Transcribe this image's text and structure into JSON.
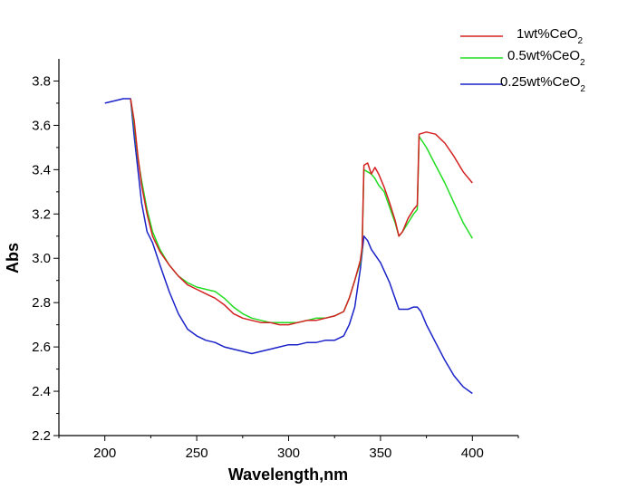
{
  "chart_data": {
    "type": "line",
    "title": "",
    "xlabel": "Wavelength,nm",
    "ylabel": "Abs",
    "xlim": [
      175,
      425
    ],
    "ylim": [
      2.2,
      3.9
    ],
    "x_ticks": [
      200,
      250,
      300,
      350,
      400
    ],
    "y_ticks": [
      2.2,
      2.4,
      2.6,
      2.8,
      3.0,
      3.2,
      3.4,
      3.6,
      3.8
    ],
    "y_tick_labels": [
      "2.2",
      "2.4",
      "2.6",
      "2.8",
      "3.0",
      "3.2",
      "3.4",
      "3.6",
      "3.8"
    ],
    "grid": false,
    "legend_position": "top-right",
    "series": [
      {
        "name": "1wt%CeO2",
        "label_main": "1wt%CeO",
        "label_sub": "2",
        "color": "#d42020",
        "points": [
          [
            214,
            3.72
          ],
          [
            216,
            3.62
          ],
          [
            218,
            3.46
          ],
          [
            220,
            3.33
          ],
          [
            223,
            3.2
          ],
          [
            226,
            3.1
          ],
          [
            230,
            3.03
          ],
          [
            235,
            2.97
          ],
          [
            240,
            2.92
          ],
          [
            245,
            2.88
          ],
          [
            250,
            2.86
          ],
          [
            255,
            2.84
          ],
          [
            260,
            2.82
          ],
          [
            265,
            2.79
          ],
          [
            270,
            2.75
          ],
          [
            275,
            2.73
          ],
          [
            280,
            2.72
          ],
          [
            285,
            2.71
          ],
          [
            290,
            2.71
          ],
          [
            295,
            2.7
          ],
          [
            300,
            2.7
          ],
          [
            305,
            2.71
          ],
          [
            310,
            2.72
          ],
          [
            315,
            2.72
          ],
          [
            320,
            2.73
          ],
          [
            325,
            2.74
          ],
          [
            330,
            2.76
          ],
          [
            333,
            2.82
          ],
          [
            336,
            2.9
          ],
          [
            339,
            2.99
          ],
          [
            340,
            3.05
          ],
          [
            341,
            3.42
          ],
          [
            343,
            3.43
          ],
          [
            345,
            3.38
          ],
          [
            347,
            3.41
          ],
          [
            349,
            3.38
          ],
          [
            352,
            3.32
          ],
          [
            355,
            3.25
          ],
          [
            358,
            3.17
          ],
          [
            360,
            3.1
          ],
          [
            362,
            3.12
          ],
          [
            365,
            3.18
          ],
          [
            368,
            3.22
          ],
          [
            370,
            3.24
          ],
          [
            371,
            3.56
          ],
          [
            375,
            3.57
          ],
          [
            380,
            3.56
          ],
          [
            385,
            3.52
          ],
          [
            390,
            3.46
          ],
          [
            395,
            3.39
          ],
          [
            400,
            3.34
          ]
        ]
      },
      {
        "name": "0.5wt%CeO2",
        "label_main": "0.5wt%CeO",
        "label_sub": "2",
        "color": "#22dd22",
        "points": [
          [
            214,
            3.72
          ],
          [
            216,
            3.6
          ],
          [
            218,
            3.45
          ],
          [
            220,
            3.35
          ],
          [
            223,
            3.22
          ],
          [
            226,
            3.12
          ],
          [
            230,
            3.04
          ],
          [
            235,
            2.97
          ],
          [
            240,
            2.92
          ],
          [
            245,
            2.89
          ],
          [
            250,
            2.87
          ],
          [
            255,
            2.86
          ],
          [
            260,
            2.85
          ],
          [
            265,
            2.82
          ],
          [
            270,
            2.78
          ],
          [
            275,
            2.75
          ],
          [
            280,
            2.73
          ],
          [
            285,
            2.72
          ],
          [
            290,
            2.71
          ],
          [
            295,
            2.71
          ],
          [
            300,
            2.71
          ],
          [
            305,
            2.71
          ],
          [
            310,
            2.72
          ],
          [
            315,
            2.73
          ],
          [
            320,
            2.73
          ],
          [
            325,
            2.74
          ],
          [
            330,
            2.76
          ],
          [
            333,
            2.82
          ],
          [
            336,
            2.9
          ],
          [
            339,
            2.98
          ],
          [
            340,
            3.04
          ],
          [
            341,
            3.4
          ],
          [
            343,
            3.39
          ],
          [
            345,
            3.38
          ],
          [
            347,
            3.36
          ],
          [
            349,
            3.33
          ],
          [
            352,
            3.3
          ],
          [
            355,
            3.23
          ],
          [
            358,
            3.16
          ],
          [
            360,
            3.1
          ],
          [
            362,
            3.12
          ],
          [
            365,
            3.16
          ],
          [
            368,
            3.2
          ],
          [
            370,
            3.22
          ],
          [
            371,
            3.55
          ],
          [
            375,
            3.5
          ],
          [
            380,
            3.42
          ],
          [
            385,
            3.34
          ],
          [
            390,
            3.25
          ],
          [
            395,
            3.16
          ],
          [
            400,
            3.09
          ]
        ]
      },
      {
        "name": "0.25wt%CeO2",
        "label_main": "0.25wt%CeO",
        "label_sub": "2",
        "color": "#1a22c8",
        "points": [
          [
            200,
            3.7
          ],
          [
            205,
            3.71
          ],
          [
            210,
            3.72
          ],
          [
            214,
            3.72
          ],
          [
            216,
            3.55
          ],
          [
            218,
            3.4
          ],
          [
            220,
            3.25
          ],
          [
            223,
            3.12
          ],
          [
            226,
            3.07
          ],
          [
            230,
            2.97
          ],
          [
            235,
            2.85
          ],
          [
            240,
            2.75
          ],
          [
            245,
            2.68
          ],
          [
            250,
            2.65
          ],
          [
            255,
            2.63
          ],
          [
            260,
            2.62
          ],
          [
            265,
            2.6
          ],
          [
            270,
            2.59
          ],
          [
            275,
            2.58
          ],
          [
            280,
            2.57
          ],
          [
            285,
            2.58
          ],
          [
            290,
            2.59
          ],
          [
            295,
            2.6
          ],
          [
            300,
            2.61
          ],
          [
            305,
            2.61
          ],
          [
            310,
            2.62
          ],
          [
            315,
            2.62
          ],
          [
            320,
            2.63
          ],
          [
            325,
            2.63
          ],
          [
            330,
            2.65
          ],
          [
            333,
            2.7
          ],
          [
            336,
            2.78
          ],
          [
            339,
            2.95
          ],
          [
            341,
            3.1
          ],
          [
            343,
            3.08
          ],
          [
            345,
            3.04
          ],
          [
            350,
            2.98
          ],
          [
            355,
            2.89
          ],
          [
            360,
            2.77
          ],
          [
            365,
            2.77
          ],
          [
            368,
            2.78
          ],
          [
            370,
            2.78
          ],
          [
            372,
            2.76
          ],
          [
            375,
            2.7
          ],
          [
            380,
            2.62
          ],
          [
            385,
            2.54
          ],
          [
            390,
            2.47
          ],
          [
            395,
            2.42
          ],
          [
            400,
            2.39
          ]
        ]
      }
    ]
  }
}
